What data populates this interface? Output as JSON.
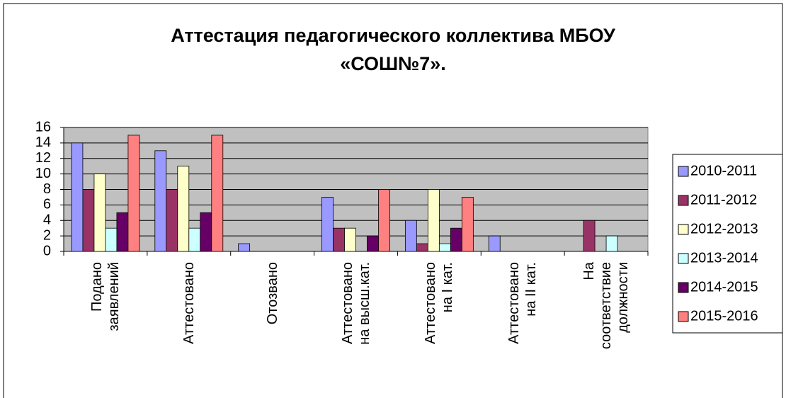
{
  "chart_data": {
    "type": "bar",
    "title": "Аттестация  педагогического коллектива МБОУ\n«СОШ№7».",
    "categories": [
      "Подано\nзаявлений",
      "Аттестовано",
      "Отозвано",
      "Аттестовано\nна высш.кат.",
      "Аттестовано\nна I кат.",
      "Аттестовано\nна II кат.",
      "На\nсоответствие\nдолжности"
    ],
    "series": [
      {
        "name": "2010-2011",
        "color": "#9999ff",
        "values": [
          14,
          13,
          1,
          7,
          4,
          2,
          0
        ]
      },
      {
        "name": "2011-2012",
        "color": "#993366",
        "values": [
          8,
          8,
          0,
          3,
          1,
          0,
          4
        ]
      },
      {
        "name": "2012-2013",
        "color": "#ffffcc",
        "values": [
          10,
          11,
          0,
          3,
          8,
          0,
          0
        ]
      },
      {
        "name": "2013-2014",
        "color": "#ccffff",
        "values": [
          3,
          3,
          0,
          0,
          1,
          0,
          2
        ]
      },
      {
        "name": "2014-2015",
        "color": "#660066",
        "values": [
          5,
          5,
          0,
          2,
          3,
          0,
          0
        ]
      },
      {
        "name": "2015-2016",
        "color": "#ff8080",
        "values": [
          15,
          15,
          0,
          8,
          7,
          0,
          0
        ]
      }
    ],
    "ylim": [
      0,
      16
    ],
    "yticks": [
      0,
      2,
      4,
      6,
      8,
      10,
      12,
      14,
      16
    ],
    "grid": true,
    "legend": "right"
  }
}
